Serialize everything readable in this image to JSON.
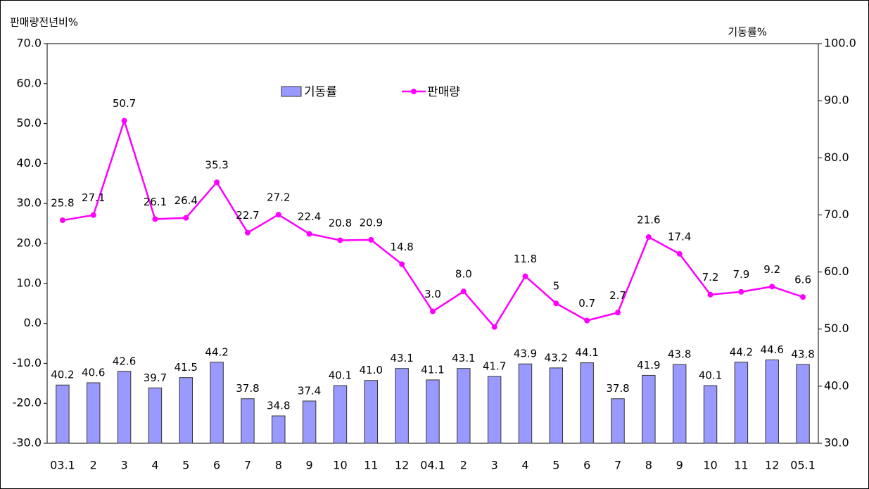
{
  "chart_data": {
    "type": "bar_line",
    "ylabel": "판매량전년비%",
    "y2label": "기동률%",
    "categories": [
      "03.1",
      "2",
      "3",
      "4",
      "5",
      "6",
      "7",
      "8",
      "9",
      "10",
      "11",
      "12",
      "04.1",
      "2",
      "3",
      "4",
      "5",
      "6",
      "7",
      "8",
      "9",
      "10",
      "11",
      "12",
      "05.1"
    ],
    "series": [
      {
        "name": "기동률",
        "type": "bar",
        "axis": "y2",
        "color": "#9999ff",
        "values": [
          40.2,
          40.6,
          42.6,
          39.7,
          41.5,
          44.2,
          37.8,
          34.8,
          37.4,
          40.1,
          41.0,
          43.1,
          41.1,
          43.1,
          41.7,
          43.9,
          43.2,
          44.1,
          37.8,
          41.9,
          43.8,
          40.1,
          44.2,
          44.6,
          43.8
        ],
        "value_labels": [
          "40.2",
          "40.6",
          "42.6",
          "39.7",
          "41.5",
          "44.2",
          "37.8",
          "34.8",
          "37.4",
          "40.1",
          "41.0",
          "43.1",
          "41.1",
          "43.1",
          "41.7",
          "43.9",
          "43.2",
          "44.1",
          "37.8",
          "41.9",
          "43.8",
          "40.1",
          "44.2",
          "44.6",
          "43.8"
        ]
      },
      {
        "name": "판매량",
        "type": "line",
        "axis": "y",
        "color": "#ff00ff",
        "values": [
          25.8,
          27.1,
          50.7,
          26.1,
          26.4,
          35.3,
          22.7,
          27.2,
          22.4,
          20.8,
          20.9,
          14.8,
          3.0,
          8.0,
          -0.9,
          11.8,
          5,
          0.7,
          2.7,
          21.6,
          17.4,
          7.2,
          7.9,
          9.2,
          6.6
        ],
        "value_labels": [
          "25.8",
          "27.1",
          "50.7",
          "26.1",
          "26.4",
          "35.3",
          "22.7",
          "27.2",
          "22.4",
          "20.8",
          "20.9",
          "14.8",
          "3.0",
          "8.0",
          null,
          "11.8",
          "5",
          "0.7",
          "2.7",
          "21.6",
          "17.4",
          "7.2",
          "7.9",
          "9.2",
          "6.6"
        ]
      }
    ],
    "ylim": [
      -30,
      70
    ],
    "yticks": [
      {
        "value": -30,
        "label": "-30.0"
      },
      {
        "value": -20,
        "label": "-20.0"
      },
      {
        "value": -10,
        "label": "-10.0"
      },
      {
        "value": 0,
        "label": "0.0"
      },
      {
        "value": 10,
        "label": "10.0"
      },
      {
        "value": 20,
        "label": "20.0"
      },
      {
        "value": 30,
        "label": "30.0"
      },
      {
        "value": 40,
        "label": "40.0"
      },
      {
        "value": 50,
        "label": "50.0"
      },
      {
        "value": 60,
        "label": "60.0"
      },
      {
        "value": 70,
        "label": "70.0"
      }
    ],
    "y2lim": [
      30,
      100
    ],
    "y2ticks": [
      {
        "value": 30,
        "label": "30.0"
      },
      {
        "value": 40,
        "label": "40.0"
      },
      {
        "value": 50,
        "label": "50.0"
      },
      {
        "value": 60,
        "label": "60.0"
      },
      {
        "value": 70,
        "label": "70.0"
      },
      {
        "value": 80,
        "label": "80.0"
      },
      {
        "value": 90,
        "label": "90.0"
      },
      {
        "value": 100,
        "label": "100.0"
      }
    ],
    "legend": "top"
  }
}
